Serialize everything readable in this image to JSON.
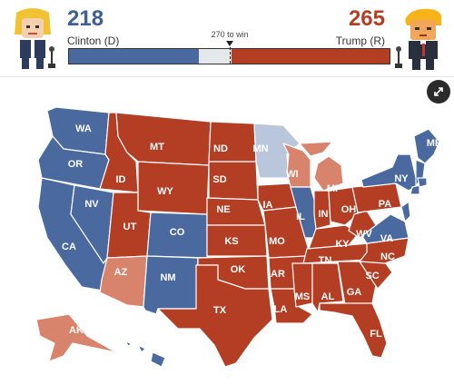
{
  "colors": {
    "dem_solid": "#4a6a9f",
    "dem_lean": "#b9c6dc",
    "gop_solid": "#b43e23",
    "gop_lean": "#d8836b",
    "tossup": "#e4e7ec"
  },
  "scoreboard": {
    "clinton": {
      "votes": "218",
      "name": "Clinton (D)",
      "color": "#3d5f93"
    },
    "trump": {
      "votes": "265",
      "name": "Trump (R)",
      "color": "#b43e23"
    },
    "threshold_label": "270 to win",
    "bar": {
      "total": 538,
      "dem": 218,
      "gop": 265,
      "win": 270
    }
  },
  "controls": {
    "expand_icon": "expand-arrows-icon"
  },
  "states": [
    {
      "code": "WA",
      "rating": "dem"
    },
    {
      "code": "OR",
      "rating": "dem"
    },
    {
      "code": "CA",
      "rating": "dem"
    },
    {
      "code": "NV",
      "rating": "dem"
    },
    {
      "code": "ID",
      "rating": "gop"
    },
    {
      "code": "MT",
      "rating": "gop"
    },
    {
      "code": "WY",
      "rating": "gop"
    },
    {
      "code": "UT",
      "rating": "gop"
    },
    {
      "code": "AZ",
      "rating": "lean_gop"
    },
    {
      "code": "CO",
      "rating": "dem"
    },
    {
      "code": "NM",
      "rating": "dem"
    },
    {
      "code": "ND",
      "rating": "gop"
    },
    {
      "code": "SD",
      "rating": "gop"
    },
    {
      "code": "NE",
      "rating": "gop"
    },
    {
      "code": "KS",
      "rating": "gop"
    },
    {
      "code": "OK",
      "rating": "gop"
    },
    {
      "code": "TX",
      "rating": "gop"
    },
    {
      "code": "MN",
      "rating": "lean_dem"
    },
    {
      "code": "IA",
      "rating": "gop"
    },
    {
      "code": "MO",
      "rating": "gop"
    },
    {
      "code": "AR",
      "rating": "gop"
    },
    {
      "code": "LA",
      "rating": "gop"
    },
    {
      "code": "WI",
      "rating": "lean_gop"
    },
    {
      "code": "IL",
      "rating": "dem"
    },
    {
      "code": "MI",
      "rating": "lean_gop"
    },
    {
      "code": "IN",
      "rating": "gop"
    },
    {
      "code": "OH",
      "rating": "gop"
    },
    {
      "code": "KY",
      "rating": "gop"
    },
    {
      "code": "TN",
      "rating": "gop"
    },
    {
      "code": "MS",
      "rating": "gop"
    },
    {
      "code": "AL",
      "rating": "gop"
    },
    {
      "code": "GA",
      "rating": "gop"
    },
    {
      "code": "FL",
      "rating": "gop"
    },
    {
      "code": "SC",
      "rating": "gop"
    },
    {
      "code": "NC",
      "rating": "gop"
    },
    {
      "code": "VA",
      "rating": "dem"
    },
    {
      "code": "WV",
      "rating": "gop"
    },
    {
      "code": "PA",
      "rating": "gop"
    },
    {
      "code": "NY",
      "rating": "dem"
    },
    {
      "code": "ME",
      "rating": "dem"
    },
    {
      "code": "AK",
      "rating": "lean_gop"
    },
    {
      "code": "HI",
      "rating": "dem"
    }
  ]
}
